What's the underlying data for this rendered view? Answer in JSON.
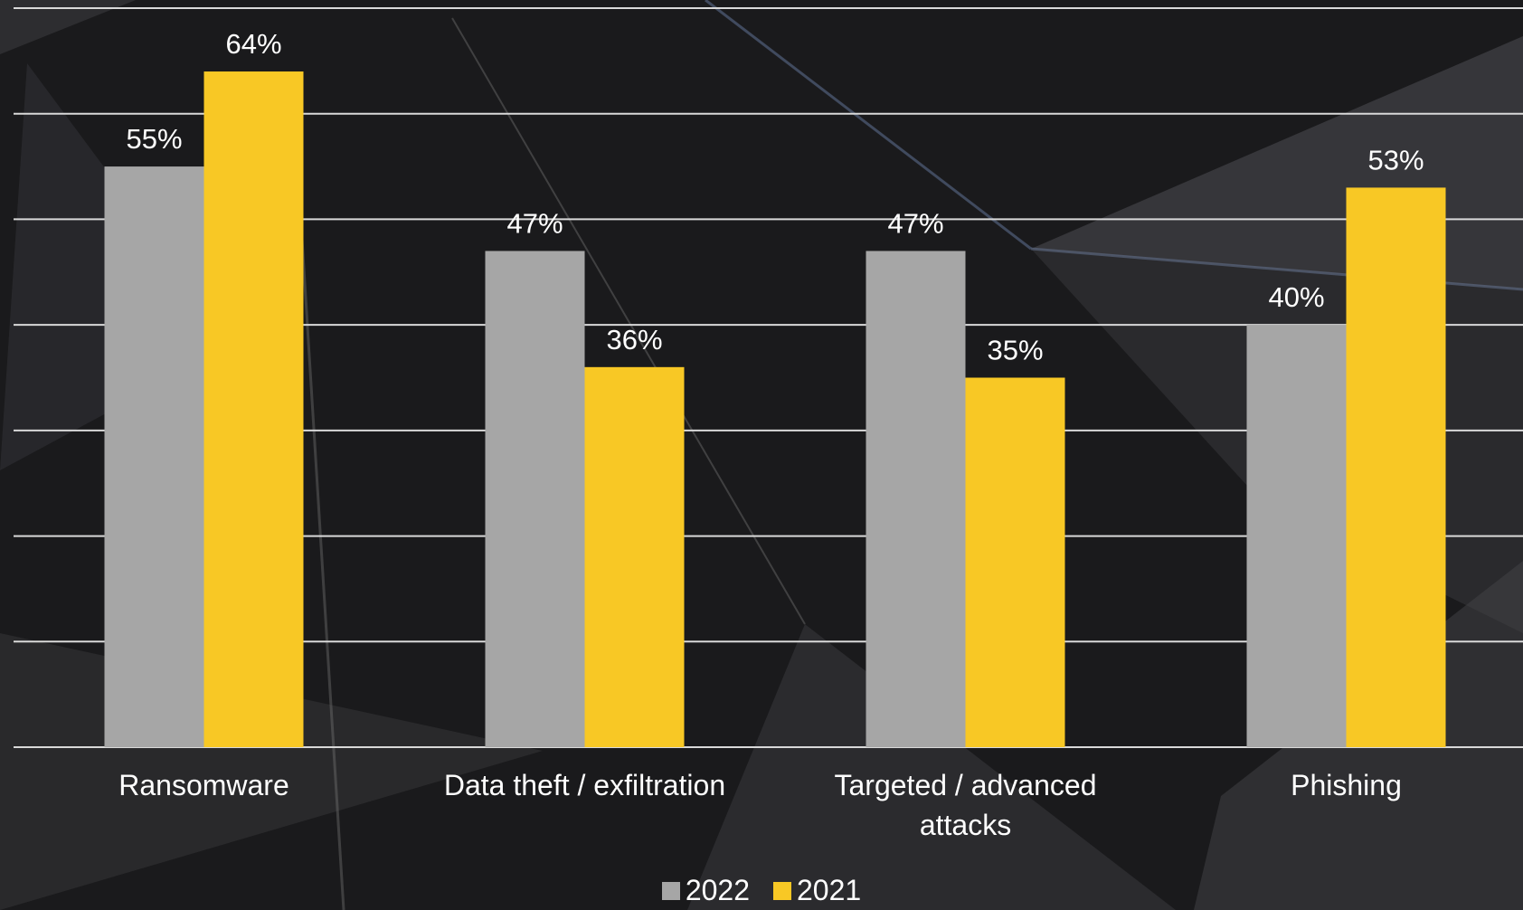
{
  "chart_data": {
    "type": "bar",
    "categories": [
      "Ransomware",
      "Data theft / exfiltration",
      "Targeted / advanced attacks",
      "Phishing"
    ],
    "series": [
      {
        "name": "2022",
        "color": "#a6a6a6",
        "values": [
          55,
          47,
          47,
          40
        ],
        "value_labels": [
          "55%",
          "47%",
          "47%",
          "40%"
        ]
      },
      {
        "name": "2021",
        "color": "#f8c825",
        "values": [
          64,
          36,
          35,
          53
        ],
        "value_labels": [
          "64%",
          "36%",
          "35%",
          "53%"
        ]
      }
    ],
    "ylim": [
      0,
      70
    ],
    "yticks": [
      0,
      10,
      20,
      30,
      40,
      50,
      60,
      70
    ],
    "grid": true,
    "legend": "bottom"
  }
}
